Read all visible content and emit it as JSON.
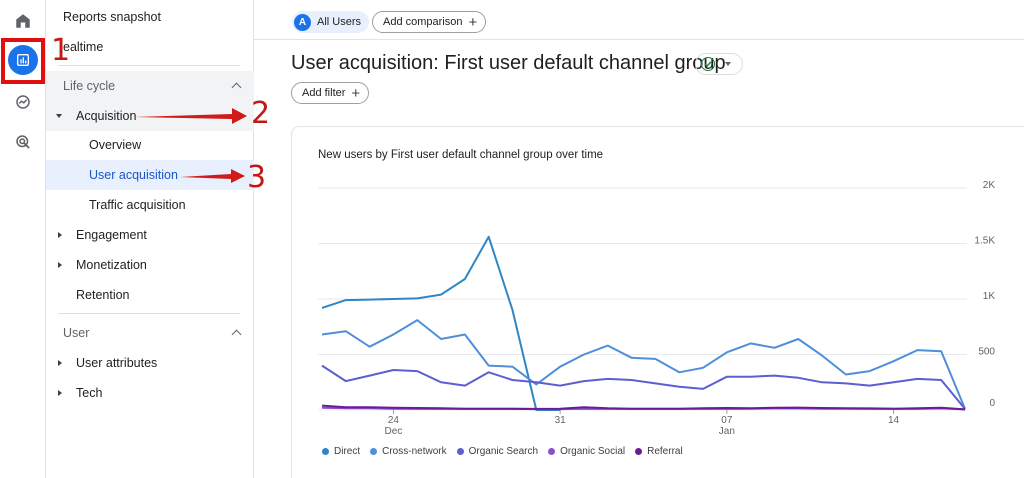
{
  "rail": {
    "icons": [
      "home-icon",
      "reports-icon",
      "explore-icon",
      "advertising-icon"
    ]
  },
  "sidebar": {
    "reports_snapshot": "Reports snapshot",
    "realtime": "ealtime",
    "lifecycle_header": "Life cycle",
    "acquisition": "Acquisition",
    "overview": "Overview",
    "user_acquisition": "User acquisition",
    "traffic_acquisition": "Traffic acquisition",
    "engagement": "Engagement",
    "monetization": "Monetization",
    "retention": "Retention",
    "user_header": "User",
    "user_attributes": "User attributes",
    "tech": "Tech"
  },
  "topbar": {
    "segment_badge": "A",
    "segment_label": "All Users",
    "add_comparison": "Add comparison"
  },
  "page": {
    "title": "User acquisition: First user default channel group",
    "add_filter": "Add filter"
  },
  "annotations": [
    "1",
    "2",
    "3"
  ],
  "colors": {
    "accent": "#1a73e8",
    "annotation_red": "#d11a1a",
    "direct": "#2f86c4",
    "cross_network": "#4f8fd9",
    "organic_search": "#5b5fd1",
    "organic_social": "#8a4fc9",
    "referral": "#6a1b9a"
  },
  "chart_data": {
    "type": "line",
    "title": "New users by First user default channel group over time",
    "x_ticks": [
      {
        "day": "24",
        "month": "Dec",
        "index": 3
      },
      {
        "day": "31",
        "month": "",
        "index": 10
      },
      {
        "day": "07",
        "month": "Jan",
        "index": 17
      },
      {
        "day": "14",
        "month": "",
        "index": 24
      }
    ],
    "y_ticks": [
      "0",
      "500",
      "1K",
      "1.5K",
      "2K"
    ],
    "ylim": [
      0,
      2000
    ],
    "series": [
      {
        "name": "Direct",
        "color": "#2f86c4",
        "values": [
          920,
          990,
          995,
          1000,
          1005,
          1040,
          1180,
          1560,
          900,
          0,
          0
        ]
      },
      {
        "name": "Cross-network",
        "color": "#4f8fd9",
        "values": [
          680,
          710,
          570,
          680,
          810,
          640,
          680,
          400,
          390,
          230,
          390,
          500,
          580,
          470,
          460,
          340,
          380,
          520,
          600,
          560,
          640,
          490,
          320,
          350,
          440,
          540,
          530,
          10
        ]
      },
      {
        "name": "Organic Search",
        "color": "#5b5fd1",
        "values": [
          400,
          260,
          310,
          360,
          350,
          250,
          220,
          340,
          270,
          250,
          220,
          260,
          280,
          270,
          240,
          210,
          190,
          300,
          300,
          310,
          290,
          250,
          240,
          220,
          250,
          280,
          270,
          10
        ]
      },
      {
        "name": "Organic Social",
        "color": "#8a4fc9",
        "values": [
          20,
          15,
          15,
          12,
          10,
          10,
          10,
          10,
          10,
          8,
          8,
          12,
          10,
          10,
          10,
          10,
          10,
          10,
          12,
          14,
          14,
          12,
          12,
          10,
          10,
          10,
          14,
          5
        ]
      },
      {
        "name": "Referral",
        "color": "#6a1b9a",
        "values": [
          40,
          25,
          25,
          20,
          18,
          15,
          12,
          12,
          12,
          10,
          12,
          25,
          15,
          12,
          12,
          12,
          15,
          18,
          15,
          20,
          22,
          18,
          15,
          14,
          12,
          15,
          20,
          5
        ]
      }
    ],
    "grid": true,
    "legend_position": "bottom-left"
  }
}
